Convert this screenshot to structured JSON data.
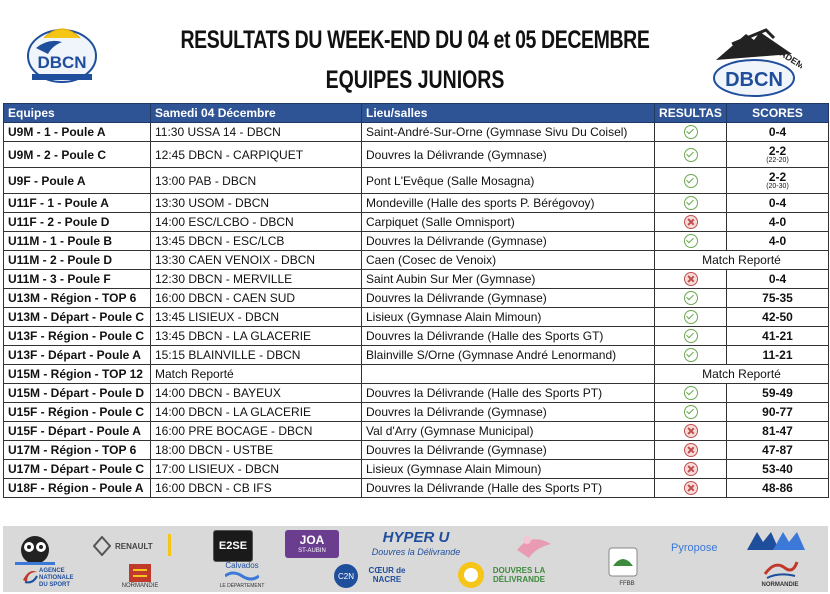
{
  "header": {
    "title_line1": "RESULTATS  DU WEEK-END DU 04 et 05 DECEMBRE",
    "title_line2": "EQUIPES JUNIORS",
    "logo_left": "DBCN",
    "logo_right": "DBCN",
    "logo_right_arc": "ACADEMY"
  },
  "table": {
    "headers": [
      "Equipes",
      "Samedi 04 Décembre",
      "Lieu/salles",
      "RESULTAS",
      "SCORES"
    ],
    "rows": [
      {
        "team": "U9M - 1 - Poule A",
        "match": "11:30 USSA 14 - DBCN",
        "venue": "Saint-André-Sur-Orne (Gymnase Sivu Du Coisel)",
        "status": "ok",
        "score": "0-4",
        "score_detail": ""
      },
      {
        "team": "U9M - 2 - Poule C",
        "match": "12:45 DBCN - CARPIQUET",
        "venue": "Douvres la Délivrande (Gymnase)",
        "status": "ok",
        "score": "2-2",
        "score_detail": "(22-20)"
      },
      {
        "team": "U9F - Poule A",
        "match": "13:00 PAB - DBCN",
        "venue": "Pont L'Evêque (Salle Mosagna)",
        "status": "ok",
        "score": "2-2",
        "score_detail": "(20-30)"
      },
      {
        "team": "U11F - 1 - Poule A",
        "match": "13:30 USOM - DBCN",
        "venue": "Mondeville (Halle des sports P. Bérégovoy)",
        "status": "ok",
        "score": "0-4",
        "score_detail": ""
      },
      {
        "team": "U11F - 2 - Poule D",
        "match": "14:00 ESC/LCBO - DBCN",
        "venue": "Carpiquet (Salle Omnisport)",
        "status": "ko",
        "score": "4-0",
        "score_detail": ""
      },
      {
        "team": "U11M - 1 - Poule B",
        "match": "13:45 DBCN - ESC/LCB",
        "venue": "Douvres la Délivrande (Gymnase)",
        "status": "ok",
        "score": "4-0",
        "score_detail": ""
      },
      {
        "team": "U11M - 2 - Poule D",
        "match": "13:30 CAEN VENOIX - DBCN",
        "venue": "Caen (Cosec de Venoix)",
        "status": "reporte",
        "score": "Match Reporté",
        "score_detail": ""
      },
      {
        "team": "U11M - 3 - Poule F",
        "match": "12:30 DBCN - MERVILLE",
        "venue": "Saint Aubin Sur Mer (Gymnase)",
        "status": "ko",
        "score": "0-4",
        "score_detail": ""
      },
      {
        "team": "U13M - Région - TOP 6",
        "match": "16:00 DBCN - CAEN SUD",
        "venue": "Douvres la Délivrande (Gymnase)",
        "status": "ok",
        "score": "75-35",
        "score_detail": ""
      },
      {
        "team": "U13M - Départ - Poule C",
        "match": "13:45 LISIEUX - DBCN",
        "venue": "Lisieux (Gymnase Alain Mimoun)",
        "status": "ok",
        "score": "42-50",
        "score_detail": ""
      },
      {
        "team": "U13F - Région - Poule C",
        "match": "13:45 DBCN - LA GLACERIE",
        "venue": "Douvres la Délivrande (Halle des Sports GT)",
        "status": "ok",
        "score": "41-21",
        "score_detail": ""
      },
      {
        "team": "U13F - Départ - Poule A",
        "match": "15:15 BLAINVILLE - DBCN",
        "venue": "Blainville S/Orne (Gymnase André Lenormand)",
        "status": "ok",
        "score": "11-21",
        "score_detail": ""
      },
      {
        "team": "U15M - Région - TOP 12",
        "match": "Match Reporté",
        "venue": "",
        "status": "reporte",
        "score": "Match Reporté",
        "score_detail": ""
      },
      {
        "team": "U15M - Départ - Poule D",
        "match": "14:00 DBCN - BAYEUX",
        "venue": "Douvres la Délivrande (Halle des Sports PT)",
        "status": "ok",
        "score": "59-49",
        "score_detail": ""
      },
      {
        "team": "U15F - Région - Poule C",
        "match": "14:00 DBCN - LA GLACERIE",
        "venue": "Douvres la Délivrande (Gymnase)",
        "status": "ok",
        "score": "90-77",
        "score_detail": ""
      },
      {
        "team": "U15F - Départ - Poule A",
        "match": "16:00 PRE BOCAGE - DBCN",
        "venue": "Val d'Arry (Gymnase Municipal)",
        "status": "ko",
        "score": "81-47",
        "score_detail": ""
      },
      {
        "team": "U17M - Région - TOP 6",
        "match": "18:00 DBCN - USTBE",
        "venue": "Douvres la Délivrande (Gymnase)",
        "status": "ko",
        "score": "47-87",
        "score_detail": ""
      },
      {
        "team": "U17M - Départ - Poule C",
        "match": "17:00 LISIEUX - DBCN",
        "venue": "Lisieux (Gymnase Alain Mimoun)",
        "status": "ko",
        "score": "53-40",
        "score_detail": ""
      },
      {
        "team": "U18F - Région - Poule A",
        "match": "16:00 DBCN - CB IFS",
        "venue": "Douvres la Délivrande (Halle des Sports PT)",
        "status": "ko",
        "score": "48-86",
        "score_detail": ""
      }
    ]
  },
  "sponsors": {
    "renault": "RENAULT",
    "e2se": "E2SE",
    "joa": "JOA",
    "joa_sub": "ST-AUBIN",
    "hyper": "HYPER U",
    "hyper_sub": "Douvres la Délivrande",
    "pyropose": "Pyropose",
    "ans": "AGENCE NATIONALE DU SPORT",
    "normandie1": "NORMANDIE",
    "calvados": "Calvados",
    "calvados_sub": "LE DÉPARTEMENT",
    "coeur_nacre": "CŒUR de NACRE",
    "douvres": "DOUVRES LA DÉLIVRANDE",
    "ffbb": "FFBB",
    "normandie2": "NORMANDIE",
    "colors": {
      "header_blue": "#2f5496",
      "ok_green": "#6aa84f",
      "ko_red": "#c0504d",
      "dbcn_blue": "#1f4e9c"
    }
  }
}
